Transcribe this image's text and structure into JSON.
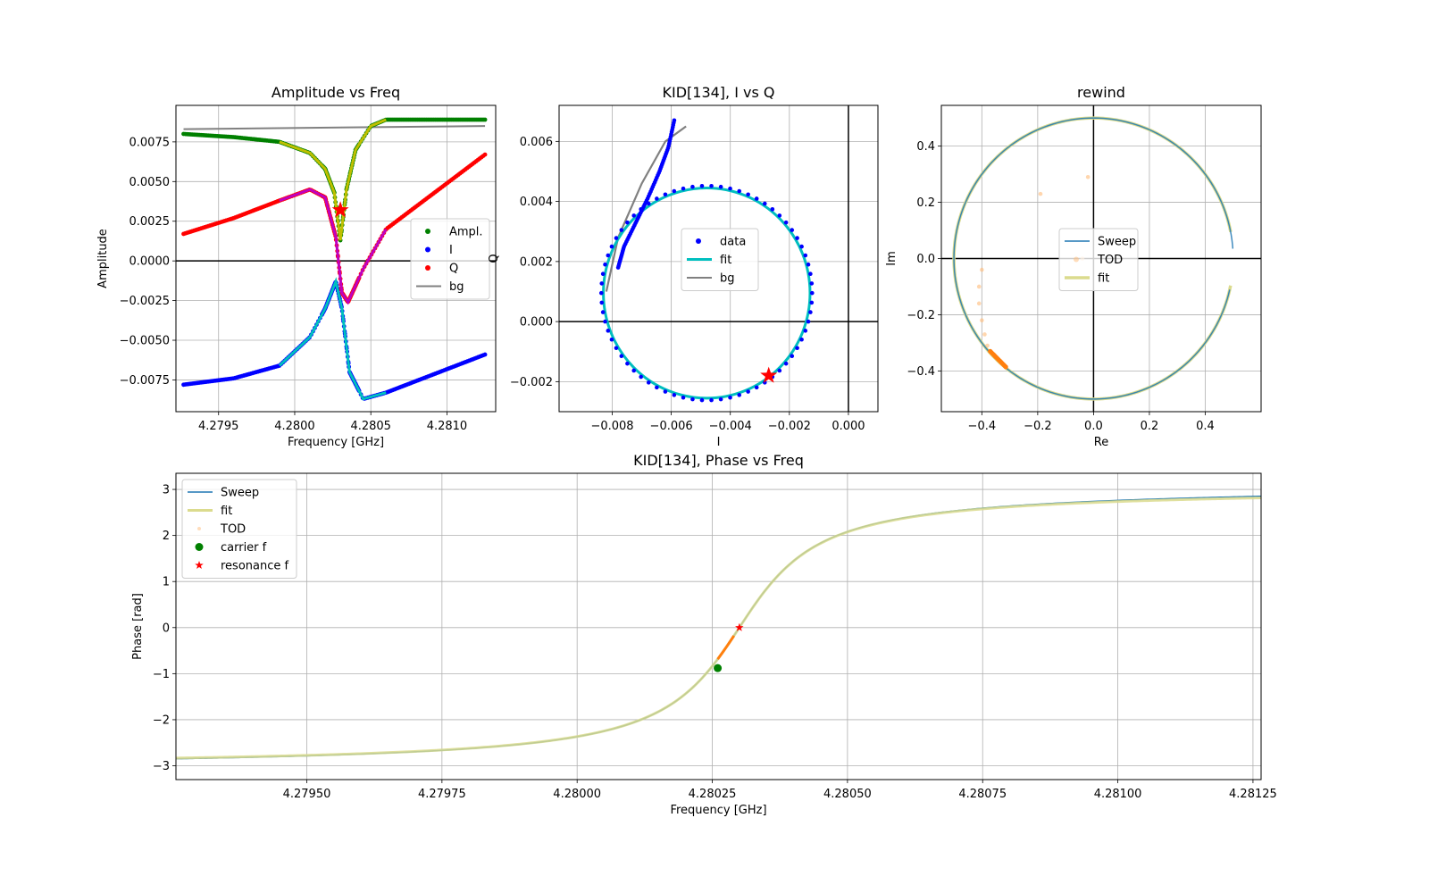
{
  "colors": {
    "ampl": "#008000",
    "i": "#0000ff",
    "q": "#ff0000",
    "bg": "#808080",
    "fit_i": "#00bfbf",
    "fit_q": "#bf00bf",
    "fit_a": "#bfbf00",
    "sweep": "#1f77b4",
    "fit_pale": "#dbdb8d",
    "tod": "#ffbb78",
    "tod_fit": "#ff7f0e",
    "carrier": "#008000",
    "resonance": "#ff0000",
    "axis_zero": "#000000",
    "grid": "#b0b0b0"
  },
  "chart_data": [
    {
      "id": "amp",
      "type": "line",
      "title": "Amplitude vs Freq",
      "xlabel": "Frequency [GHz]",
      "ylabel": "Amplitude",
      "xlim": [
        4.27922,
        4.28132
      ],
      "ylim": [
        -0.0095,
        0.0098
      ],
      "xticks": [
        4.2795,
        4.28,
        4.2805,
        4.281
      ],
      "xticklabels": [
        "4.2795",
        "4.2800",
        "4.2805",
        "4.2810"
      ],
      "yticks": [
        -0.0075,
        -0.005,
        -0.0025,
        0.0,
        0.0025,
        0.005,
        0.0075
      ],
      "yticklabels": [
        "−0.0075",
        "−0.0050",
        "−0.0025",
        "0.0000",
        "0.0025",
        "0.0050",
        "0.0075"
      ],
      "grid": true,
      "legend_position": "center-right",
      "legend": [
        "Ampl.",
        "I",
        "Q",
        "bg"
      ],
      "resonance": {
        "f": 4.2803,
        "amplitude": 0.0032
      },
      "f0": 4.2803,
      "width": 6e-05,
      "f_range": [
        4.27927,
        4.28125
      ],
      "fit_range": [
        4.2799,
        4.2806
      ],
      "series": [
        {
          "name": "Ampl.",
          "role": "amplitude",
          "style": "dots",
          "color": "#008000",
          "points": [
            [
              4.27927,
              0.008
            ],
            [
              4.2796,
              0.0078
            ],
            [
              4.2799,
              0.0075
            ],
            [
              4.2801,
              0.0068
            ],
            [
              4.2802,
              0.0058
            ],
            [
              4.28026,
              0.0043
            ],
            [
              4.2803,
              0.0013
            ],
            [
              4.28034,
              0.0045
            ],
            [
              4.2804,
              0.007
            ],
            [
              4.2805,
              0.0085
            ],
            [
              4.2806,
              0.0089
            ],
            [
              4.28125,
              0.0089
            ]
          ]
        },
        {
          "name": "I",
          "role": "i",
          "style": "dots",
          "color": "#0000ff",
          "points": [
            [
              4.27927,
              -0.0078
            ],
            [
              4.2796,
              -0.0074
            ],
            [
              4.2799,
              -0.0066
            ],
            [
              4.2801,
              -0.0048
            ],
            [
              4.2802,
              -0.003
            ],
            [
              4.28027,
              -0.0013
            ],
            [
              4.28031,
              -0.003
            ],
            [
              4.28036,
              -0.007
            ],
            [
              4.28045,
              -0.0087
            ],
            [
              4.2806,
              -0.0083
            ],
            [
              4.28125,
              -0.0059
            ]
          ]
        },
        {
          "name": "Q",
          "role": "q",
          "style": "dots",
          "color": "#ff0000",
          "points": [
            [
              4.27927,
              0.0017
            ],
            [
              4.2796,
              0.0027
            ],
            [
              4.2799,
              0.0038
            ],
            [
              4.2801,
              0.0045
            ],
            [
              4.2802,
              0.004
            ],
            [
              4.28027,
              0.0015
            ],
            [
              4.28031,
              -0.002
            ],
            [
              4.28035,
              -0.0026
            ],
            [
              4.28045,
              -0.0005
            ],
            [
              4.2806,
              0.002
            ],
            [
              4.28125,
              0.0067
            ]
          ]
        },
        {
          "name": "bg",
          "role": "bg",
          "style": "line",
          "color": "#808080",
          "points": [
            [
              4.27927,
              0.0083
            ],
            [
              4.28125,
              0.0085
            ]
          ]
        }
      ]
    },
    {
      "id": "iq",
      "type": "scatter",
      "title": "KID[134], I vs Q",
      "xlabel": "I",
      "ylabel": "Q",
      "xlim": [
        -0.0098,
        0.001
      ],
      "ylim": [
        -0.003,
        0.0072
      ],
      "xticks": [
        -0.008,
        -0.006,
        -0.004,
        -0.002,
        0.0
      ],
      "xticklabels": [
        "−0.008",
        "−0.006",
        "−0.004",
        "−0.002",
        "0.000"
      ],
      "yticks": [
        -0.002,
        0.0,
        0.002,
        0.004,
        0.006
      ],
      "yticklabels": [
        "−0.002",
        "0.000",
        "0.002",
        "0.004",
        "0.006"
      ],
      "grid": true,
      "legend_position": "center",
      "legend": [
        "data",
        "fit",
        "bg"
      ],
      "circle": {
        "cx": -0.0048,
        "cy": 0.00095,
        "r": 0.0035
      },
      "resonance": {
        "i": -0.0027,
        "q": -0.0018
      },
      "series": [
        {
          "name": "data",
          "color": "#0000ff",
          "points": [
            [
              -0.0078,
              0.0018
            ],
            [
              -0.0076,
              0.0025
            ],
            [
              -0.0072,
              0.0033
            ],
            [
              -0.0068,
              0.0041
            ],
            [
              -0.0064,
              0.005
            ],
            [
              -0.0061,
              0.0058
            ],
            [
              -0.0059,
              0.0067
            ]
          ]
        },
        {
          "name": "bg",
          "color": "#808080",
          "points": [
            [
              -0.0082,
              0.001
            ],
            [
              -0.0078,
              0.0028
            ],
            [
              -0.007,
              0.0046
            ],
            [
              -0.0062,
              0.006
            ],
            [
              -0.0055,
              0.0065
            ]
          ]
        }
      ]
    },
    {
      "id": "rewind",
      "type": "line",
      "title": "rewind",
      "xlabel": "Re",
      "ylabel": "Im",
      "xlim": [
        -0.545,
        0.6
      ],
      "ylim": [
        -0.545,
        0.545
      ],
      "xticks": [
        -0.4,
        -0.2,
        0.0,
        0.2,
        0.4
      ],
      "xticklabels": [
        "−0.4",
        "−0.2",
        "0.0",
        "0.2",
        "0.4"
      ],
      "yticks": [
        -0.4,
        -0.2,
        0.0,
        0.2,
        0.4
      ],
      "yticklabels": [
        "−0.4",
        "−0.2",
        "0.0",
        "0.2",
        "0.4"
      ],
      "grid": true,
      "legend_position": "center",
      "legend": [
        "Sweep",
        "TOD",
        "fit"
      ],
      "circle": {
        "cx": 0.0,
        "cy": 0.0,
        "r": 0.5
      },
      "series": [
        {
          "name": "TOD",
          "color": "#ffbb78",
          "points": [
            [
              -0.02,
              0.29
            ],
            [
              -0.19,
              0.23
            ],
            [
              -0.4,
              -0.04
            ],
            [
              -0.41,
              -0.1
            ],
            [
              -0.41,
              -0.16
            ],
            [
              -0.4,
              -0.22
            ],
            [
              -0.39,
              -0.27
            ],
            [
              -0.38,
              -0.31
            ],
            [
              -0.04,
              0.0
            ]
          ]
        }
      ]
    },
    {
      "id": "phase",
      "type": "line",
      "title": "KID[134], Phase vs Freq",
      "xlabel": "Frequency [GHz]",
      "ylabel": "Phase [rad]",
      "xlim": [
        4.279258,
        4.281265
      ],
      "ylim": [
        -3.3,
        3.35
      ],
      "xticks": [
        4.2795,
        4.27975,
        4.28,
        4.28025,
        4.2805,
        4.28075,
        4.281,
        4.28125
      ],
      "xticklabels": [
        "4.27950",
        "4.27975",
        "4.28000",
        "4.28025",
        "4.28050",
        "4.28075",
        "4.28100",
        "4.28125"
      ],
      "yticks": [
        -3,
        -2,
        -1,
        0,
        1,
        2,
        3
      ],
      "yticklabels": [
        "−3",
        "−2",
        "−1",
        "0",
        "1",
        "2",
        "3"
      ],
      "grid": true,
      "legend_position": "upper-left",
      "legend": [
        "Sweep",
        "fit",
        "TOD",
        "carrier f",
        "resonance f"
      ],
      "carrier": {
        "f": 4.28026,
        "phase": -0.88
      },
      "resonance": {
        "f": 4.2803,
        "phase": 0.0
      },
      "tod_range": [
        4.28026,
        4.28029
      ],
      "f0": 4.2803,
      "width": 0.00012
    }
  ]
}
